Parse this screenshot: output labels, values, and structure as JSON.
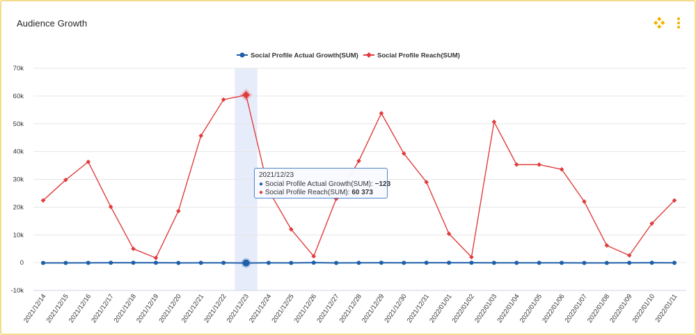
{
  "card": {
    "title": "Audience Growth",
    "icons": [
      "layout-icon",
      "more-vertical-icon"
    ]
  },
  "colors": {
    "growth": "#1f5fa8",
    "reach": "#e03c3c",
    "accent": "#f0b400",
    "grid": "#e6e6e6",
    "highlight": "#dde6f7"
  },
  "chart_data": {
    "type": "line",
    "x": [
      "2021/12/14",
      "2021/12/15",
      "2021/12/16",
      "2021/12/17",
      "2021/12/18",
      "2021/12/19",
      "2021/12/20",
      "2021/12/21",
      "2021/12/22",
      "2021/12/23",
      "2021/12/24",
      "2021/12/25",
      "2021/12/26",
      "2021/12/27",
      "2021/12/28",
      "2021/12/29",
      "2021/12/30",
      "2021/12/31",
      "2022/01/01",
      "2022/01/02",
      "2022/01/03",
      "2022/01/04",
      "2022/01/05",
      "2022/01/06",
      "2022/01/07",
      "2022/01/08",
      "2022/01/09",
      "2022/01/10",
      "2022/01/11"
    ],
    "series": [
      {
        "name": "Social Profile Actual Growth(SUM)",
        "marker": "circle",
        "values": [
          -100,
          -90,
          -60,
          -40,
          -30,
          -20,
          -80,
          -70,
          -50,
          -123,
          -60,
          -80,
          0,
          -80,
          -60,
          -40,
          -50,
          -30,
          -40,
          -20,
          -60,
          -60,
          -70,
          -60,
          -80,
          -90,
          -50,
          -40,
          -70
        ]
      },
      {
        "name": "Social Profile Reach(SUM)",
        "marker": "diamond",
        "values": [
          22400,
          29800,
          36300,
          20100,
          5000,
          1700,
          18600,
          45700,
          58700,
          60373,
          26000,
          12000,
          2300,
          23000,
          36600,
          53800,
          39300,
          29000,
          10400,
          2000,
          50700,
          35300,
          35300,
          33600,
          22000,
          6200,
          2600,
          14100,
          22400
        ]
      }
    ],
    "ylim": [
      -10000,
      70000
    ],
    "yticks": [
      -10000,
      0,
      10000,
      20000,
      30000,
      40000,
      50000,
      60000,
      70000
    ],
    "ytick_labels": [
      "-10k",
      "0",
      "10k",
      "20k",
      "30k",
      "40k",
      "50k",
      "60k",
      "70k"
    ],
    "legend_position": "top-center",
    "grid": true,
    "highlighted_index": 9,
    "tooltip": {
      "title": "2021/12/23",
      "rows": [
        {
          "label": "Social Profile Actual Growth(SUM): ",
          "value": "−123"
        },
        {
          "label": "Social Profile Reach(SUM): ",
          "value": "60 373"
        }
      ]
    }
  }
}
